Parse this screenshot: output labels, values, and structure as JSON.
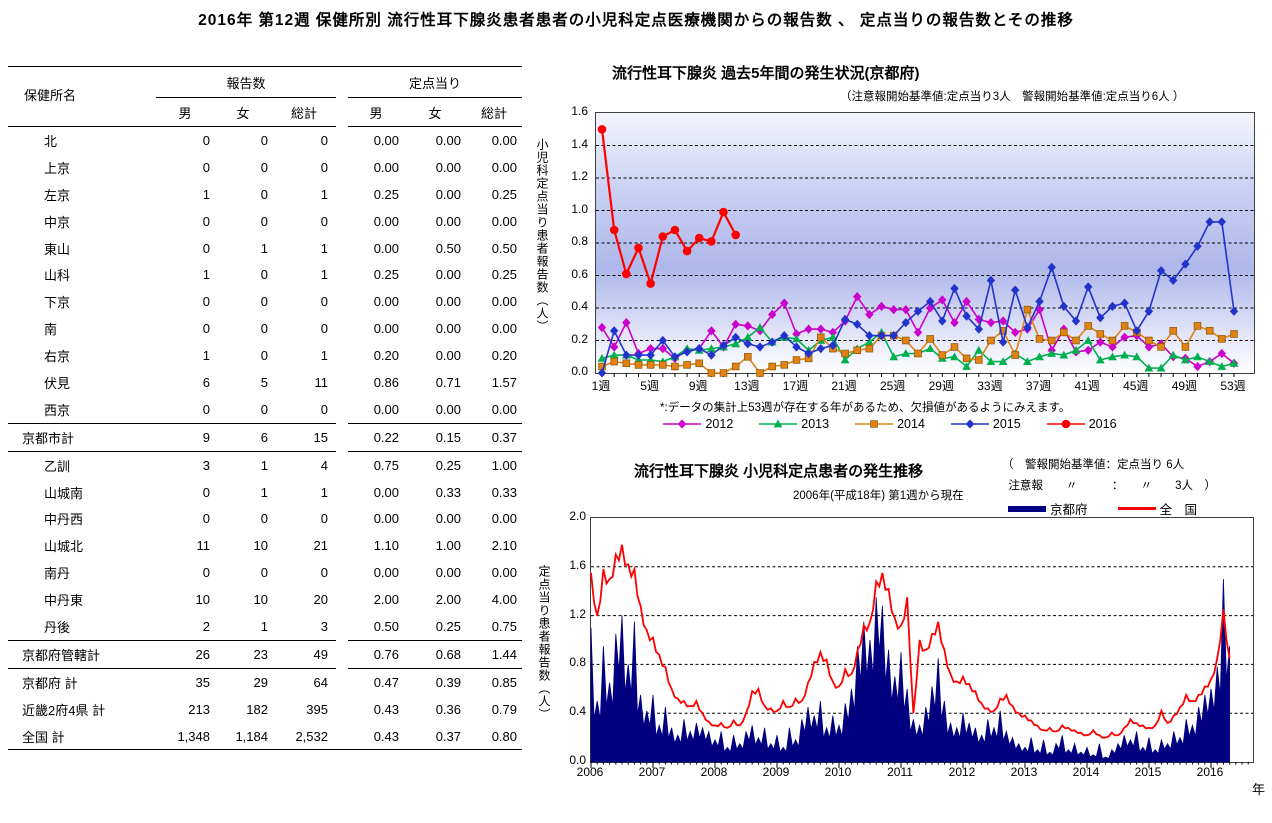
{
  "page_title": "2016年 第12週 保健所別 流行性耳下腺炎患者患者の小児科定点医療機関からの報告数 、 定点当りの報告数とその推移",
  "table": {
    "name_header": "保健所名",
    "group1": "報告数",
    "group2": "定点当り",
    "sub_headers": [
      "男",
      "女",
      "総計",
      "男",
      "女",
      "総計"
    ],
    "rows": [
      {
        "name": "北",
        "values": [
          "0",
          "0",
          "0",
          "0.00",
          "0.00",
          "0.00"
        ]
      },
      {
        "name": "上京",
        "values": [
          "0",
          "0",
          "0",
          "0.00",
          "0.00",
          "0.00"
        ]
      },
      {
        "name": "左京",
        "values": [
          "1",
          "0",
          "1",
          "0.25",
          "0.00",
          "0.25"
        ]
      },
      {
        "name": "中京",
        "values": [
          "0",
          "0",
          "0",
          "0.00",
          "0.00",
          "0.00"
        ]
      },
      {
        "name": "東山",
        "values": [
          "0",
          "1",
          "1",
          "0.00",
          "0.50",
          "0.50"
        ]
      },
      {
        "name": "山科",
        "values": [
          "1",
          "0",
          "1",
          "0.25",
          "0.00",
          "0.25"
        ]
      },
      {
        "name": "下京",
        "values": [
          "0",
          "0",
          "0",
          "0.00",
          "0.00",
          "0.00"
        ]
      },
      {
        "name": "南",
        "values": [
          "0",
          "0",
          "0",
          "0.00",
          "0.00",
          "0.00"
        ]
      },
      {
        "name": "右京",
        "values": [
          "1",
          "0",
          "1",
          "0.20",
          "0.00",
          "0.20"
        ]
      },
      {
        "name": "伏見",
        "values": [
          "6",
          "5",
          "11",
          "0.86",
          "0.71",
          "1.57"
        ]
      },
      {
        "name": "西京",
        "values": [
          "0",
          "0",
          "0",
          "0.00",
          "0.00",
          "0.00"
        ]
      },
      {
        "name": "京都市計",
        "total": true,
        "sep": true,
        "values": [
          "9",
          "6",
          "15",
          "0.22",
          "0.15",
          "0.37"
        ]
      },
      {
        "name": "乙訓",
        "sep": true,
        "values": [
          "3",
          "1",
          "4",
          "0.75",
          "0.25",
          "1.00"
        ]
      },
      {
        "name": "山城南",
        "values": [
          "0",
          "1",
          "1",
          "0.00",
          "0.33",
          "0.33"
        ]
      },
      {
        "name": "中丹西",
        "values": [
          "0",
          "0",
          "0",
          "0.00",
          "0.00",
          "0.00"
        ]
      },
      {
        "name": "山城北",
        "values": [
          "11",
          "10",
          "21",
          "1.10",
          "1.00",
          "2.10"
        ]
      },
      {
        "name": "南丹",
        "values": [
          "0",
          "0",
          "0",
          "0.00",
          "0.00",
          "0.00"
        ]
      },
      {
        "name": "中丹東",
        "values": [
          "10",
          "10",
          "20",
          "2.00",
          "2.00",
          "4.00"
        ]
      },
      {
        "name": "丹後",
        "values": [
          "2",
          "1",
          "3",
          "0.50",
          "0.25",
          "0.75"
        ]
      },
      {
        "name": "京都府管轄計",
        "total": true,
        "sep": true,
        "values": [
          "26",
          "23",
          "49",
          "0.76",
          "0.68",
          "1.44"
        ]
      },
      {
        "name": "京都府  計",
        "total": true,
        "sep": true,
        "values": [
          "35",
          "29",
          "64",
          "0.47",
          "0.39",
          "0.85"
        ]
      },
      {
        "name": "近畿2府4県  計",
        "total": true,
        "values": [
          "213",
          "182",
          "395",
          "0.43",
          "0.36",
          "0.79"
        ]
      },
      {
        "name": "全国  計",
        "total": true,
        "last": true,
        "values": [
          "1,348",
          "1,184",
          "2,532",
          "0.43",
          "0.37",
          "0.80"
        ]
      }
    ]
  },
  "chart_data": [
    {
      "type": "line",
      "title": "流行性耳下腺炎 過去5年間の発生状況(京都府)",
      "note": "（注意報開始基準値:定点当り3人　警報開始基準値:定点当り6人 ）",
      "ylabel": "小児科定点当り患者報告数（人）",
      "footnote": "*:データの集計上53週が存在する年があるため、欠損値があるようにみえます。",
      "ylim": [
        0,
        1.6
      ],
      "ytick_step": 0.2,
      "weeks": 53,
      "xticks": [
        "1週",
        "5週",
        "9週",
        "13週",
        "17週",
        "21週",
        "25週",
        "29週",
        "33週",
        "37週",
        "41週",
        "45週",
        "49週",
        "53週"
      ],
      "grid": "dashed-horizontal",
      "legend_position": "bottom",
      "series": [
        {
          "name": "2012",
          "color": "#cc00cc",
          "marker": "diamond",
          "values": [
            0.28,
            0.16,
            0.31,
            0.12,
            0.15,
            0.15,
            0.09,
            0.14,
            0.15,
            0.26,
            0.16,
            0.3,
            0.29,
            0.26,
            0.36,
            0.43,
            0.24,
            0.27,
            0.27,
            0.25,
            0.32,
            0.47,
            0.36,
            0.41,
            0.39,
            0.39,
            0.25,
            0.4,
            0.45,
            0.31,
            0.44,
            0.33,
            0.31,
            0.32,
            0.25,
            0.27,
            0.39,
            0.14,
            0.27,
            0.13,
            0.14,
            0.19,
            0.16,
            0.22,
            0.23,
            0.16,
            0.18,
            0.1,
            0.09,
            0.04,
            0.07,
            0.12,
            0.06
          ]
        },
        {
          "name": "2013",
          "color": "#00b050",
          "marker": "triangle",
          "values": [
            0.09,
            0.11,
            0.11,
            0.08,
            0.08,
            0.07,
            0.1,
            0.15,
            0.14,
            0.15,
            0.16,
            0.18,
            0.22,
            0.28,
            0.19,
            0.22,
            0.21,
            0.14,
            0.2,
            0.22,
            0.08,
            0.15,
            0.19,
            0.25,
            0.1,
            0.12,
            0.12,
            0.15,
            0.09,
            0.1,
            0.04,
            0.14,
            0.07,
            0.07,
            0.12,
            0.07,
            0.1,
            0.12,
            0.11,
            0.14,
            0.2,
            0.08,
            0.1,
            0.11,
            0.1,
            0.03,
            0.03,
            0.11,
            0.08,
            0.1,
            0.07,
            0.04,
            0.06
          ]
        },
        {
          "name": "2014",
          "color": "#e08214",
          "marker": "square",
          "values": [
            0.04,
            0.07,
            0.06,
            0.05,
            0.05,
            0.05,
            0.04,
            0.05,
            0.06,
            0.0,
            0.0,
            0.04,
            0.1,
            0.0,
            0.04,
            0.05,
            0.08,
            0.09,
            0.22,
            0.15,
            0.12,
            0.14,
            0.15,
            0.23,
            0.23,
            0.2,
            0.12,
            0.21,
            0.11,
            0.16,
            0.09,
            0.08,
            0.2,
            0.26,
            0.11,
            0.39,
            0.21,
            0.2,
            0.25,
            0.2,
            0.29,
            0.24,
            0.2,
            0.29,
            0.25,
            0.2,
            0.16,
            0.26,
            0.16,
            0.29,
            0.26,
            0.21,
            0.24
          ]
        },
        {
          "name": "2015",
          "color": "#2233cc",
          "marker": "diamond",
          "values": [
            0.0,
            0.26,
            0.11,
            0.11,
            0.11,
            0.2,
            0.1,
            0.13,
            0.15,
            0.11,
            0.17,
            0.22,
            0.18,
            0.16,
            0.19,
            0.23,
            0.16,
            0.12,
            0.15,
            0.17,
            0.33,
            0.3,
            0.23,
            0.23,
            0.23,
            0.31,
            0.38,
            0.44,
            0.32,
            0.52,
            0.35,
            0.27,
            0.57,
            0.19,
            0.51,
            0.28,
            0.44,
            0.65,
            0.41,
            0.32,
            0.53,
            0.34,
            0.41,
            0.43,
            0.26,
            0.38,
            0.63,
            0.57,
            0.67,
            0.78,
            0.93,
            0.93,
            0.38
          ]
        },
        {
          "name": "2016",
          "color": "#ff0000",
          "marker": "circle",
          "values": [
            1.5,
            0.88,
            0.61,
            0.77,
            0.55,
            0.84,
            0.88,
            0.75,
            0.83,
            0.81,
            0.99,
            0.85
          ]
        }
      ]
    },
    {
      "type": "area",
      "title": "流行性耳下腺炎 小児科定点患者の発生推移",
      "subtitle": "2006年(平成18年) 第1週から現在",
      "note_line1": "（　警報開始基準値：定点当り 6人",
      "note_line2": "  注意報　　〃　　　：　　〃　　3人　）",
      "ylabel": "定点当り患者報告数（人）",
      "xlabel": "年",
      "ylim": [
        0,
        2.0
      ],
      "ytick_step": 0.4,
      "x_start": 2006,
      "x_step": 0.1,
      "year_ticks": [
        "2006",
        "2007",
        "2008",
        "2009",
        "2010",
        "2011",
        "2012",
        "2013",
        "2014",
        "2015",
        "2016"
      ],
      "grid": "dashed-horizontal",
      "series": [
        {
          "name": "京都府",
          "color": "#000080",
          "style": "area",
          "values": [
            1.1,
            0.5,
            0.95,
            0.65,
            1.05,
            1.2,
            0.8,
            1.15,
            0.55,
            0.42,
            0.55,
            0.3,
            0.45,
            0.28,
            0.22,
            0.35,
            0.25,
            0.32,
            0.28,
            0.25,
            0.18,
            0.25,
            0.12,
            0.22,
            0.15,
            0.25,
            0.3,
            0.2,
            0.28,
            0.15,
            0.22,
            0.12,
            0.28,
            0.18,
            0.35,
            0.45,
            0.38,
            0.5,
            0.28,
            0.38,
            0.3,
            0.48,
            0.6,
            0.95,
            1.15,
            1.0,
            1.35,
            1.28,
            0.92,
            0.7,
            0.9,
            0.6,
            0.35,
            0.3,
            0.45,
            0.62,
            0.85,
            0.5,
            0.32,
            0.28,
            0.4,
            0.32,
            0.28,
            0.22,
            0.35,
            0.28,
            0.42,
            0.25,
            0.2,
            0.15,
            0.12,
            0.2,
            0.1,
            0.18,
            0.08,
            0.15,
            0.22,
            0.1,
            0.15,
            0.08,
            0.12,
            0.06,
            0.15,
            0.04,
            0.1,
            0.15,
            0.22,
            0.18,
            0.25,
            0.12,
            0.2,
            0.1,
            0.18,
            0.15,
            0.25,
            0.2,
            0.35,
            0.3,
            0.45,
            0.55,
            0.6,
            0.78,
            1.5,
            0.95
          ]
        },
        {
          "name": "全　国",
          "color": "#ff0000",
          "style": "line",
          "values": [
            1.55,
            1.2,
            1.58,
            1.5,
            1.7,
            1.78,
            1.62,
            1.58,
            1.28,
            1.08,
            1.02,
            0.88,
            0.78,
            0.6,
            0.52,
            0.5,
            0.46,
            0.5,
            0.4,
            0.33,
            0.3,
            0.32,
            0.28,
            0.34,
            0.3,
            0.4,
            0.58,
            0.6,
            0.46,
            0.44,
            0.42,
            0.5,
            0.45,
            0.52,
            0.5,
            0.65,
            0.82,
            0.9,
            0.84,
            0.66,
            0.62,
            0.76,
            0.72,
            0.92,
            1.12,
            1.15,
            1.48,
            1.55,
            1.42,
            1.18,
            1.12,
            1.35,
            0.4,
            1.0,
            0.92,
            1.05,
            1.15,
            0.92,
            0.72,
            0.66,
            0.7,
            0.64,
            0.58,
            0.48,
            0.44,
            0.42,
            0.52,
            0.55,
            0.46,
            0.4,
            0.38,
            0.34,
            0.3,
            0.26,
            0.28,
            0.25,
            0.3,
            0.28,
            0.26,
            0.24,
            0.22,
            0.26,
            0.22,
            0.2,
            0.24,
            0.22,
            0.28,
            0.35,
            0.32,
            0.3,
            0.28,
            0.3,
            0.42,
            0.32,
            0.38,
            0.45,
            0.55,
            0.5,
            0.55,
            0.62,
            0.68,
            0.85,
            1.25,
            0.85
          ]
        }
      ]
    }
  ]
}
